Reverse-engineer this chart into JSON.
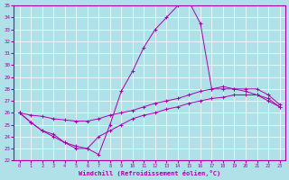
{
  "xlabel": "Windchill (Refroidissement éolien,°C)",
  "bg_color": "#b0e0e8",
  "grid_color": "#ffffff",
  "line_color": "#aa00aa",
  "hours": [
    0,
    1,
    2,
    3,
    4,
    5,
    6,
    7,
    8,
    9,
    10,
    11,
    12,
    13,
    14,
    15,
    16,
    17,
    18,
    19,
    20,
    21,
    22,
    23
  ],
  "line_peak": [
    26.0,
    25.2,
    24.5,
    24.0,
    23.5,
    23.2,
    23.0,
    22.5,
    25.0,
    27.8,
    29.5,
    31.5,
    33.0,
    34.0,
    35.0,
    35.3,
    33.5,
    28.0,
    28.2,
    28.0,
    27.8,
    27.5,
    27.2,
    26.5
  ],
  "line_upper": [
    26.0,
    25.8,
    25.7,
    25.5,
    25.4,
    25.3,
    25.3,
    25.5,
    25.8,
    26.0,
    26.2,
    26.5,
    26.8,
    27.0,
    27.2,
    27.5,
    27.8,
    28.0,
    28.0,
    28.0,
    28.0,
    28.0,
    27.5,
    26.7
  ],
  "line_lower": [
    26.0,
    25.2,
    24.5,
    24.2,
    23.5,
    23.0,
    23.0,
    24.0,
    24.5,
    25.0,
    25.5,
    25.8,
    26.0,
    26.3,
    26.5,
    26.8,
    27.0,
    27.2,
    27.3,
    27.5,
    27.5,
    27.5,
    27.0,
    26.5
  ],
  "ylim": [
    22,
    35
  ],
  "yticks": [
    22,
    23,
    24,
    25,
    26,
    27,
    28,
    29,
    30,
    31,
    32,
    33,
    34,
    35
  ],
  "xlim": [
    -0.5,
    23.5
  ],
  "xticks": [
    0,
    1,
    2,
    3,
    4,
    5,
    6,
    7,
    8,
    9,
    10,
    11,
    12,
    13,
    14,
    15,
    16,
    17,
    18,
    19,
    20,
    21,
    22,
    23
  ]
}
